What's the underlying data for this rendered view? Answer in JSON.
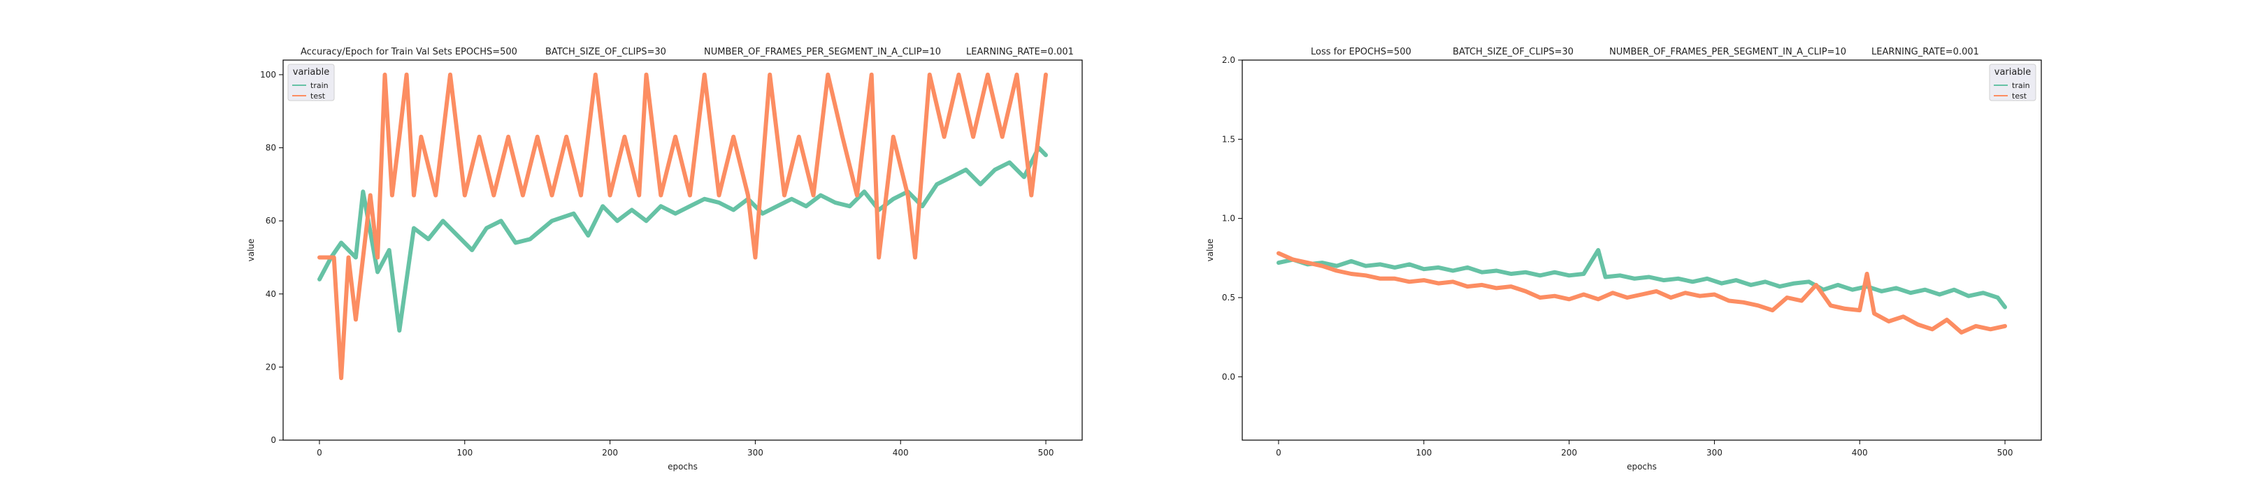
{
  "chart_data": [
    {
      "type": "line",
      "title_parts": [
        "Accuracy/Epoch for Train Val Sets EPOCHS=500",
        "BATCH_SIZE_OF_CLIPS=30",
        "NUMBER_OF_FRAMES_PER_SEGMENT_IN_A_CLIP=10",
        "LEARNING_RATE=0.001"
      ],
      "xlabel": "epochs",
      "ylabel": "value",
      "xlim": [
        -25,
        525
      ],
      "ylim": [
        0,
        104
      ],
      "xticks": [
        0,
        100,
        200,
        300,
        400,
        500
      ],
      "yticks": [
        0,
        20,
        40,
        60,
        80,
        100
      ],
      "grid": false,
      "legend": {
        "title": "variable",
        "position": "top-left",
        "entries": [
          "train",
          "test"
        ]
      },
      "series": [
        {
          "name": "train",
          "color": "#66c2a5",
          "points": [
            [
              0,
              44
            ],
            [
              8,
              50
            ],
            [
              15,
              54
            ],
            [
              25,
              50
            ],
            [
              30,
              68
            ],
            [
              40,
              46
            ],
            [
              48,
              52
            ],
            [
              55,
              30
            ],
            [
              65,
              58
            ],
            [
              75,
              55
            ],
            [
              85,
              60
            ],
            [
              95,
              56
            ],
            [
              105,
              52
            ],
            [
              115,
              58
            ],
            [
              125,
              60
            ],
            [
              135,
              54
            ],
            [
              145,
              55
            ],
            [
              160,
              60
            ],
            [
              175,
              62
            ],
            [
              185,
              56
            ],
            [
              195,
              64
            ],
            [
              205,
              60
            ],
            [
              215,
              63
            ],
            [
              225,
              60
            ],
            [
              235,
              64
            ],
            [
              245,
              62
            ],
            [
              255,
              64
            ],
            [
              265,
              66
            ],
            [
              275,
              65
            ],
            [
              285,
              63
            ],
            [
              295,
              66
            ],
            [
              305,
              62
            ],
            [
              315,
              64
            ],
            [
              325,
              66
            ],
            [
              335,
              64
            ],
            [
              345,
              67
            ],
            [
              355,
              65
            ],
            [
              365,
              64
            ],
            [
              375,
              68
            ],
            [
              385,
              63
            ],
            [
              395,
              66
            ],
            [
              405,
              68
            ],
            [
              415,
              64
            ],
            [
              425,
              70
            ],
            [
              435,
              72
            ],
            [
              445,
              74
            ],
            [
              455,
              70
            ],
            [
              465,
              74
            ],
            [
              475,
              76
            ],
            [
              485,
              72
            ],
            [
              495,
              80
            ],
            [
              500,
              78
            ]
          ]
        },
        {
          "name": "test",
          "color": "#fc8d62",
          "points": [
            [
              0,
              50
            ],
            [
              10,
              50
            ],
            [
              15,
              17
            ],
            [
              20,
              50
            ],
            [
              25,
              33
            ],
            [
              30,
              50
            ],
            [
              35,
              67
            ],
            [
              40,
              50
            ],
            [
              45,
              100
            ],
            [
              50,
              67
            ],
            [
              55,
              83
            ],
            [
              60,
              100
            ],
            [
              65,
              67
            ],
            [
              70,
              83
            ],
            [
              80,
              67
            ],
            [
              90,
              100
            ],
            [
              100,
              67
            ],
            [
              110,
              83
            ],
            [
              120,
              67
            ],
            [
              130,
              83
            ],
            [
              140,
              67
            ],
            [
              150,
              83
            ],
            [
              160,
              67
            ],
            [
              170,
              83
            ],
            [
              180,
              67
            ],
            [
              190,
              100
            ],
            [
              200,
              67
            ],
            [
              210,
              83
            ],
            [
              220,
              67
            ],
            [
              225,
              100
            ],
            [
              235,
              67
            ],
            [
              245,
              83
            ],
            [
              255,
              67
            ],
            [
              265,
              100
            ],
            [
              275,
              67
            ],
            [
              285,
              83
            ],
            [
              295,
              67
            ],
            [
              300,
              50
            ],
            [
              310,
              100
            ],
            [
              320,
              67
            ],
            [
              330,
              83
            ],
            [
              340,
              67
            ],
            [
              350,
              100
            ],
            [
              360,
              83
            ],
            [
              370,
              67
            ],
            [
              380,
              100
            ],
            [
              385,
              50
            ],
            [
              395,
              83
            ],
            [
              405,
              67
            ],
            [
              410,
              50
            ],
            [
              420,
              100
            ],
            [
              430,
              83
            ],
            [
              440,
              100
            ],
            [
              450,
              83
            ],
            [
              460,
              100
            ],
            [
              470,
              83
            ],
            [
              480,
              100
            ],
            [
              490,
              67
            ],
            [
              500,
              100
            ]
          ]
        }
      ]
    },
    {
      "type": "line",
      "title_parts": [
        "Loss for  EPOCHS=500",
        "BATCH_SIZE_OF_CLIPS=30",
        "NUMBER_OF_FRAMES_PER_SEGMENT_IN_A_CLIP=10",
        "LEARNING_RATE=0.001"
      ],
      "xlabel": "epochs",
      "ylabel": "value",
      "xlim": [
        -25,
        525
      ],
      "ylim": [
        -0.4,
        2.0
      ],
      "xticks": [
        0,
        100,
        200,
        300,
        400,
        500
      ],
      "yticks": [
        0.0,
        0.5,
        1.0,
        1.5,
        2.0
      ],
      "grid": false,
      "legend": {
        "title": "variable",
        "position": "top-right",
        "entries": [
          "train",
          "test"
        ]
      },
      "series": [
        {
          "name": "train",
          "color": "#66c2a5",
          "points": [
            [
              0,
              0.72
            ],
            [
              10,
              0.74
            ],
            [
              20,
              0.71
            ],
            [
              30,
              0.72
            ],
            [
              40,
              0.7
            ],
            [
              50,
              0.73
            ],
            [
              60,
              0.7
            ],
            [
              70,
              0.71
            ],
            [
              80,
              0.69
            ],
            [
              90,
              0.71
            ],
            [
              100,
              0.68
            ],
            [
              110,
              0.69
            ],
            [
              120,
              0.67
            ],
            [
              130,
              0.69
            ],
            [
              140,
              0.66
            ],
            [
              150,
              0.67
            ],
            [
              160,
              0.65
            ],
            [
              170,
              0.66
            ],
            [
              180,
              0.64
            ],
            [
              190,
              0.66
            ],
            [
              200,
              0.64
            ],
            [
              210,
              0.65
            ],
            [
              220,
              0.8
            ],
            [
              225,
              0.63
            ],
            [
              235,
              0.64
            ],
            [
              245,
              0.62
            ],
            [
              255,
              0.63
            ],
            [
              265,
              0.61
            ],
            [
              275,
              0.62
            ],
            [
              285,
              0.6
            ],
            [
              295,
              0.62
            ],
            [
              305,
              0.59
            ],
            [
              315,
              0.61
            ],
            [
              325,
              0.58
            ],
            [
              335,
              0.6
            ],
            [
              345,
              0.57
            ],
            [
              355,
              0.59
            ],
            [
              365,
              0.6
            ],
            [
              375,
              0.55
            ],
            [
              385,
              0.58
            ],
            [
              395,
              0.55
            ],
            [
              405,
              0.57
            ],
            [
              415,
              0.54
            ],
            [
              425,
              0.56
            ],
            [
              435,
              0.53
            ],
            [
              445,
              0.55
            ],
            [
              455,
              0.52
            ],
            [
              465,
              0.55
            ],
            [
              475,
              0.51
            ],
            [
              485,
              0.53
            ],
            [
              495,
              0.5
            ],
            [
              500,
              0.44
            ]
          ]
        },
        {
          "name": "test",
          "color": "#fc8d62",
          "points": [
            [
              0,
              0.78
            ],
            [
              10,
              0.74
            ],
            [
              20,
              0.72
            ],
            [
              30,
              0.7
            ],
            [
              40,
              0.67
            ],
            [
              50,
              0.65
            ],
            [
              60,
              0.64
            ],
            [
              70,
              0.62
            ],
            [
              80,
              0.62
            ],
            [
              90,
              0.6
            ],
            [
              100,
              0.61
            ],
            [
              110,
              0.59
            ],
            [
              120,
              0.6
            ],
            [
              130,
              0.57
            ],
            [
              140,
              0.58
            ],
            [
              150,
              0.56
            ],
            [
              160,
              0.57
            ],
            [
              170,
              0.54
            ],
            [
              180,
              0.5
            ],
            [
              190,
              0.51
            ],
            [
              200,
              0.49
            ],
            [
              210,
              0.52
            ],
            [
              220,
              0.49
            ],
            [
              230,
              0.53
            ],
            [
              240,
              0.5
            ],
            [
              250,
              0.52
            ],
            [
              260,
              0.54
            ],
            [
              270,
              0.5
            ],
            [
              280,
              0.53
            ],
            [
              290,
              0.51
            ],
            [
              300,
              0.52
            ],
            [
              310,
              0.48
            ],
            [
              320,
              0.47
            ],
            [
              330,
              0.45
            ],
            [
              340,
              0.42
            ],
            [
              350,
              0.5
            ],
            [
              360,
              0.48
            ],
            [
              370,
              0.58
            ],
            [
              380,
              0.45
            ],
            [
              390,
              0.43
            ],
            [
              400,
              0.42
            ],
            [
              405,
              0.65
            ],
            [
              410,
              0.4
            ],
            [
              420,
              0.35
            ],
            [
              430,
              0.38
            ],
            [
              440,
              0.33
            ],
            [
              450,
              0.3
            ],
            [
              460,
              0.36
            ],
            [
              470,
              0.28
            ],
            [
              480,
              0.32
            ],
            [
              490,
              0.3
            ],
            [
              500,
              0.32
            ]
          ]
        }
      ]
    }
  ]
}
